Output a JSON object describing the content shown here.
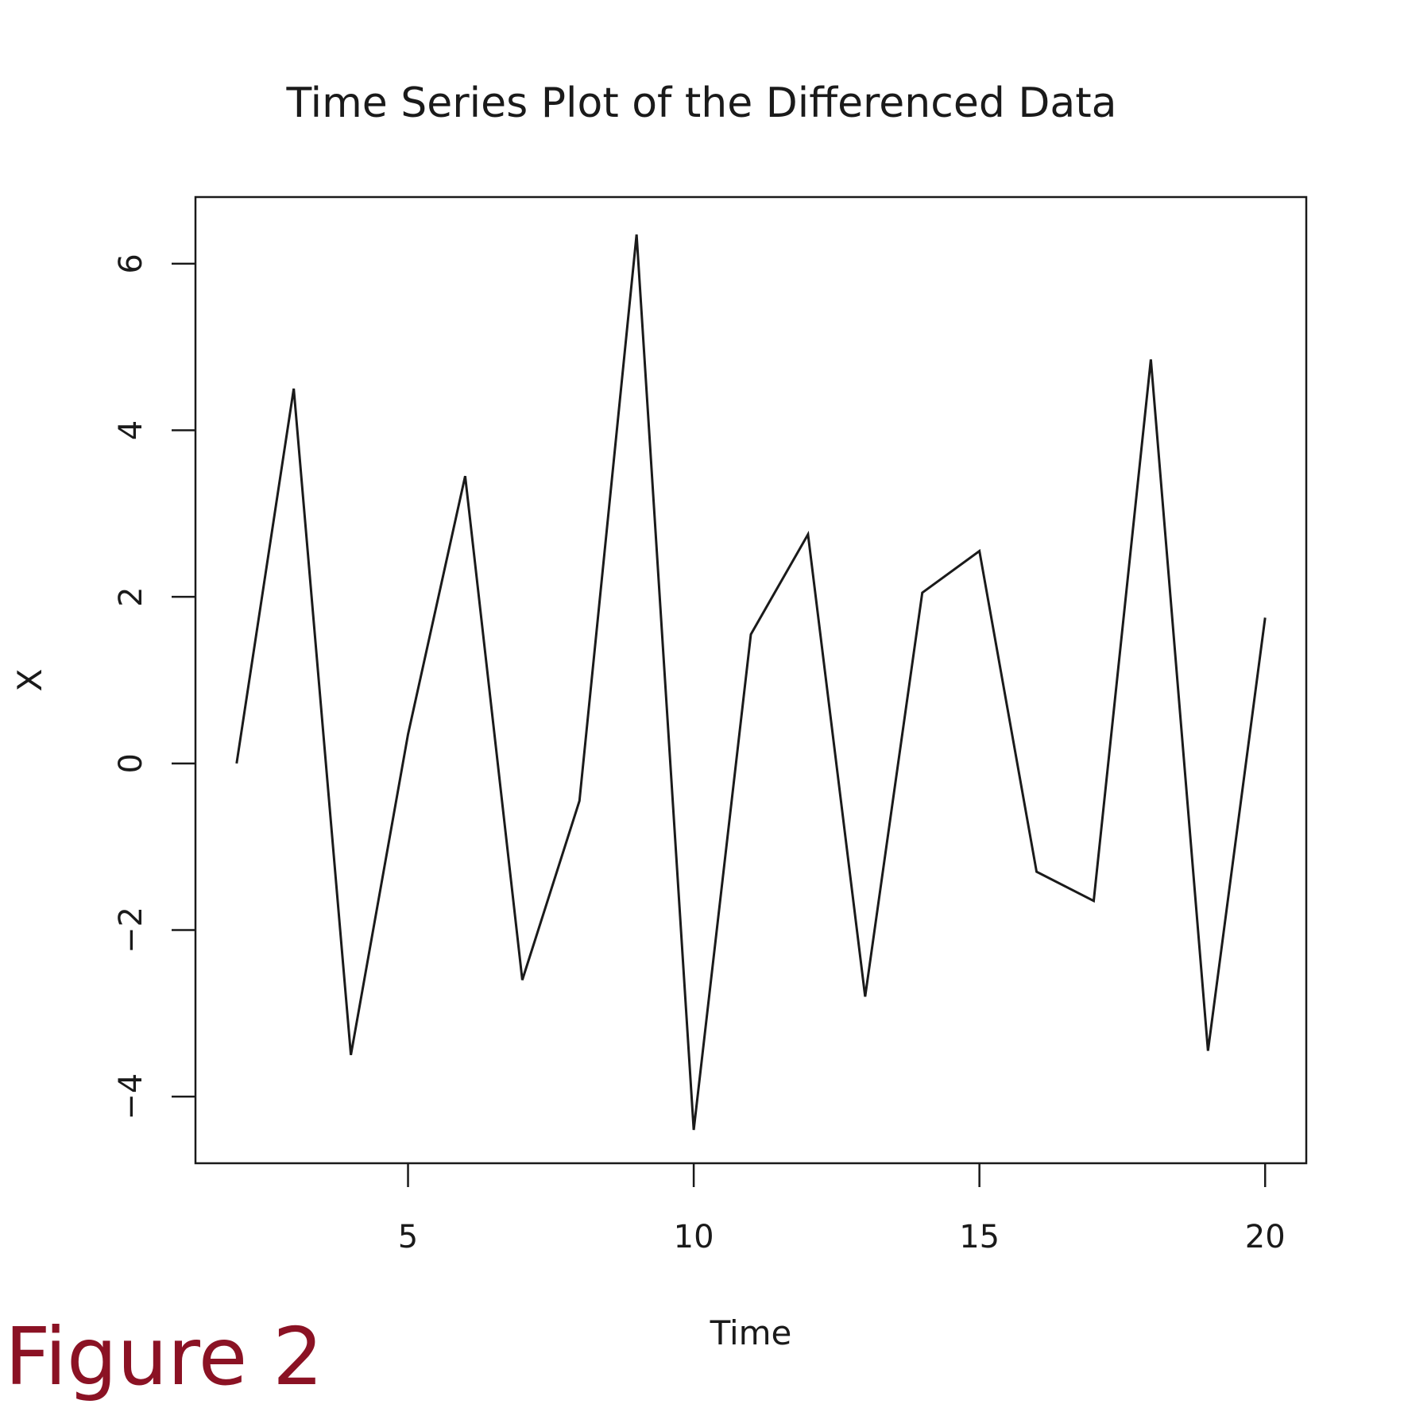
{
  "figure_label": "Figure 2",
  "chart_data": {
    "type": "line",
    "title": "Time Series Plot of the Differenced Data",
    "xlabel": "Time",
    "ylabel": "X",
    "xlim": [
      1.28,
      20.72
    ],
    "ylim": [
      -4.8,
      6.8
    ],
    "x_ticks": [
      5,
      10,
      15,
      20
    ],
    "y_ticks": [
      -4,
      -2,
      0,
      2,
      4,
      6
    ],
    "x_tick_labels": [
      "5",
      "10",
      "15",
      "20"
    ],
    "y_tick_labels": [
      "−4",
      "−2",
      "0",
      "2",
      "4",
      "6"
    ],
    "grid": false,
    "legend": "none",
    "line_color": "#1a1a1a",
    "series": [
      {
        "x": [
          2,
          3,
          4,
          5,
          6,
          7,
          8,
          9,
          10,
          11,
          12,
          13,
          14,
          15,
          16,
          17,
          18,
          19,
          20
        ],
        "values": [
          0.0,
          4.5,
          -3.5,
          0.35,
          3.45,
          -2.6,
          -0.45,
          6.35,
          -4.4,
          1.55,
          2.75,
          -2.8,
          2.05,
          2.55,
          -1.3,
          -1.65,
          4.85,
          -3.45,
          1.75
        ]
      }
    ]
  }
}
